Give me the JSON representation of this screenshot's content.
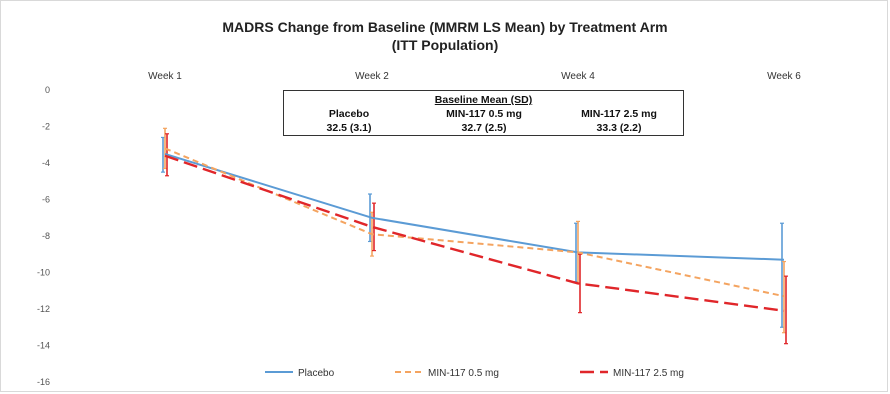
{
  "chart_data": {
    "type": "line",
    "title": "MADRS Change from Baseline (MMRM LS Mean) by Treatment Arm",
    "subtitle": "(ITT Population)",
    "categories": [
      "Week 1",
      "Week 2",
      "Week 4",
      "Week 6"
    ],
    "ylim": [
      -16,
      0
    ],
    "yticks": [
      0,
      -2,
      -4,
      -6,
      -8,
      -10,
      -12,
      -14,
      -16
    ],
    "grid": false,
    "legend_position": "bottom",
    "series": [
      {
        "name": "Placebo",
        "color": "#5b9bd5",
        "dash": "solid",
        "values": [
          -3.5,
          -7.0,
          -8.9,
          -9.3
        ],
        "error_low": [
          -4.5,
          -8.3,
          -10.5,
          -13.0
        ],
        "error_high": [
          -2.6,
          -5.7,
          -7.3,
          -7.3
        ]
      },
      {
        "name": "MIN-117 0.5 mg",
        "color": "#f4a460",
        "dash": "short",
        "values": [
          -3.2,
          -7.9,
          -8.9,
          -11.3
        ],
        "error_low": [
          -4.3,
          -9.1,
          -10.6,
          -13.3
        ],
        "error_high": [
          -2.1,
          -6.7,
          -7.2,
          -9.4
        ]
      },
      {
        "name": "MIN-117 2.5 mg",
        "color": "#e0262a",
        "dash": "long",
        "values": [
          -3.6,
          -7.5,
          -10.6,
          -12.1
        ],
        "error_low": [
          -4.7,
          -8.8,
          -12.2,
          -13.9
        ],
        "error_high": [
          -2.4,
          -6.2,
          -9.0,
          -10.2
        ]
      }
    ],
    "baseline_table": {
      "header": "Baseline Mean (SD)",
      "columns": [
        {
          "name": "Placebo",
          "value": "32.5 (3.1)"
        },
        {
          "name": "MIN-117 0.5 mg",
          "value": "32.7 (2.5)"
        },
        {
          "name": "MIN-117 2.5 mg",
          "value": "33.3 (2.2)"
        }
      ]
    }
  }
}
